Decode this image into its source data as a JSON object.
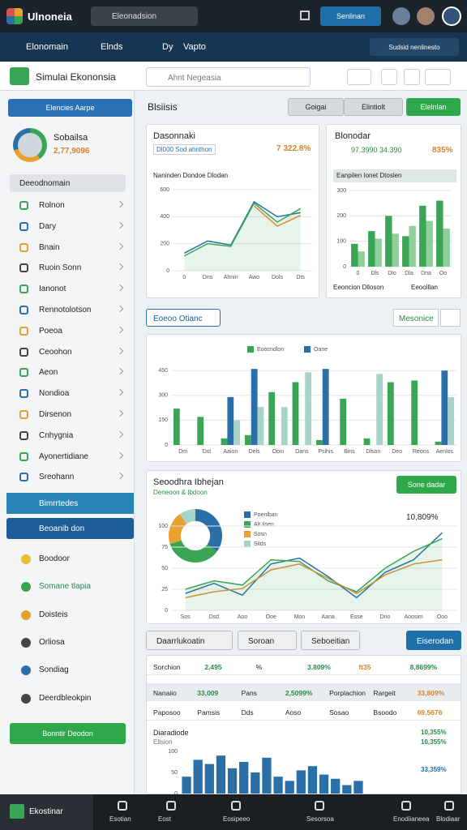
{
  "top_bar": {
    "app_name": "Ulnoneia",
    "search": "Eleonadsion",
    "button": "Senlinan"
  },
  "nav": {
    "items": [
      "Elonomain",
      "Elnds",
      "Dy",
      "Vapto"
    ],
    "right": "Sudsid nenlinesto"
  },
  "header": {
    "title": "Simulai Ekononsia",
    "input": "Ahnt Negeasia"
  },
  "sidebar": {
    "dropdown": "Elencies Aarpe",
    "profile_name": "Sobailsa",
    "profile_value": "2,77,9096",
    "section": "Deeodnomain",
    "items": [
      "Rolnon",
      "Dary",
      "Bnain",
      "Ruoin Sonn",
      "Ianonot",
      "Rennotolotson",
      "Poeoa",
      "Ceoohon",
      "Aeon",
      "Nondioa",
      "Dirsenon",
      "Cnhygnia",
      "Ayonertidiane",
      "Sreohann"
    ],
    "active_1": "Bimrrtedes",
    "active_2": "Beoanib don",
    "items_2": [
      "Boodoor",
      "Somane tlapia",
      "Doisteis",
      "Orliosa",
      "Sondiag",
      "Deerdbleokpin"
    ],
    "button": "Bonntir Deodon"
  },
  "toolbar": {
    "title": "Blsiisis",
    "buttons": [
      "Goigai",
      "Elintiolt",
      "Elelnlan"
    ],
    "dropdown": "Eoeoo Otianc",
    "right": "Mesonice"
  },
  "chart_data": [
    {
      "type": "line",
      "title": "Dasonnaki",
      "labels": [
        "Dl000 Sod ahnthon",
        "7 322.8%"
      ],
      "subtitle": "Naninden Dondoe Dlodan",
      "categories": [
        "0",
        "Dns",
        "Ahnin",
        "Awo",
        "Dols",
        "Dts"
      ],
      "series": [
        {
          "color": "#2a6fa8",
          "values": [
            130,
            220,
            190,
            510,
            400,
            430
          ]
        },
        {
          "color": "#3aa655",
          "values": [
            110,
            200,
            180,
            500,
            360,
            460
          ]
        },
        {
          "color": "#e08a2a",
          "values": [
            null,
            null,
            null,
            480,
            330,
            410
          ]
        }
      ],
      "ylim": [
        0,
        600
      ],
      "yticks": [
        0,
        200,
        400,
        600
      ],
      "area": true,
      "grid": true
    },
    {
      "type": "bar",
      "title": "Blonodar",
      "labels": [
        "97.3990 34.390",
        "835%"
      ],
      "subtitle": "Eanpilen Ionet Dtoslen",
      "footer": [
        "Eeoncion Dlloson",
        "Eeoolllan"
      ],
      "categories": [
        "0",
        "Dls",
        "Dlo",
        "Dla",
        "Dna",
        "Oo"
      ],
      "series": [
        {
          "color": "#3aa655",
          "values": [
            90,
            140,
            200,
            120,
            240,
            260
          ]
        },
        {
          "color": "#8fcf9a",
          "values": [
            60,
            110,
            130,
            160,
            180,
            150
          ]
        }
      ],
      "ylim": [
        0,
        300
      ],
      "yticks": [
        0,
        100,
        200,
        300
      ],
      "grid": true
    },
    {
      "type": "bar",
      "categories": [
        "Dm",
        "Dst",
        "Aaion",
        "Dels",
        "Ooin",
        "Dans",
        "Psihis",
        "Bins",
        "Dlson",
        "Deo",
        "Reons",
        "Aenlos"
      ],
      "series": [
        {
          "name": "Eoocndlon",
          "color": "#3aa655",
          "values": [
            220,
            170,
            40,
            60,
            320,
            380,
            30,
            280,
            40,
            380,
            390,
            20
          ]
        },
        {
          "name": "Oane",
          "color": "#2a6fa8",
          "values": [
            0,
            0,
            290,
            460,
            0,
            0,
            460,
            0,
            0,
            0,
            0,
            450
          ]
        },
        {
          "color": "#a8d5c8",
          "values": [
            0,
            0,
            150,
            230,
            230,
            440,
            0,
            0,
            430,
            0,
            0,
            290
          ]
        }
      ],
      "ylim": [
        0,
        500
      ],
      "yticks": [
        0,
        150,
        300,
        450
      ],
      "grid": true
    },
    {
      "type": "pie",
      "title": "Seoodhra Ibhejan",
      "subtitle": "Deneoon & Ibdoon",
      "button": "Sone dadar",
      "categories": [
        "Poenlban",
        "Alt Ilsen",
        "Sosn",
        "Silds"
      ],
      "values": [
        35,
        35,
        20,
        10
      ],
      "colors": [
        "#2a6fa8",
        "#3aa655",
        "#e8a030",
        "#a8d5c8"
      ]
    },
    {
      "type": "line",
      "labels": [
        "10,809%"
      ],
      "categories": [
        "Sos",
        "Dsd",
        "Aoo",
        "Ooe",
        "Mon",
        "Aana",
        "Esse",
        "Dno",
        "Aoosim",
        "Ooo"
      ],
      "series": [
        {
          "color": "#2a6fa8",
          "values": [
            20,
            32,
            18,
            55,
            62,
            40,
            15,
            45,
            60,
            92
          ]
        },
        {
          "color": "#3aa655",
          "values": [
            25,
            35,
            30,
            60,
            58,
            35,
            22,
            50,
            70,
            85
          ]
        },
        {
          "color": "#c9903a",
          "values": [
            15,
            22,
            26,
            48,
            55,
            38,
            20,
            42,
            55,
            60
          ]
        }
      ],
      "ylim": [
        0,
        100
      ],
      "yticks": [
        0,
        25,
        50,
        75,
        100
      ],
      "area": true,
      "grid": true
    },
    {
      "type": "bar",
      "categories": [
        null,
        null,
        null,
        null,
        null,
        null,
        null,
        null,
        null,
        null,
        null,
        null,
        null,
        null,
        null,
        null
      ],
      "series": [
        {
          "color": "#2a6fa8",
          "values": [
            40,
            80,
            70,
            90,
            60,
            75,
            50,
            85,
            40,
            30,
            55,
            65,
            45,
            35,
            20,
            30
          ]
        }
      ],
      "ylim": [
        0,
        100
      ],
      "yticks": [
        0,
        50,
        100
      ]
    }
  ],
  "table": {
    "buttons": [
      "Daarrlukoatin",
      "Soroan",
      "Seboeitian",
      "Eiserodan"
    ],
    "rows": [
      [
        "Sorchion",
        "2,495",
        "%",
        "3.809%",
        "ft35",
        "8,8699%"
      ],
      [
        "Nanaiio",
        "33,009",
        "Pans",
        "2,5099%",
        "Porplachion",
        "Rargeit",
        "33,809%"
      ],
      [
        "Paposoo",
        "Pamsis",
        "Dds",
        "Aoso",
        "Sosao",
        "Bsoodo",
        "69,5676"
      ]
    ],
    "chart_row": {
      "title": "Diaradiode",
      "subtitle": "Ellsion",
      "values": [
        "10,355%",
        "10,355%",
        "33,359%"
      ]
    }
  },
  "bottom_bar": {
    "items": [
      "Ekostinar",
      "Esotian",
      "Eost",
      "Eosipeeo",
      "Sesorsoa",
      "Enodiianeea",
      "Blodiaar"
    ]
  }
}
